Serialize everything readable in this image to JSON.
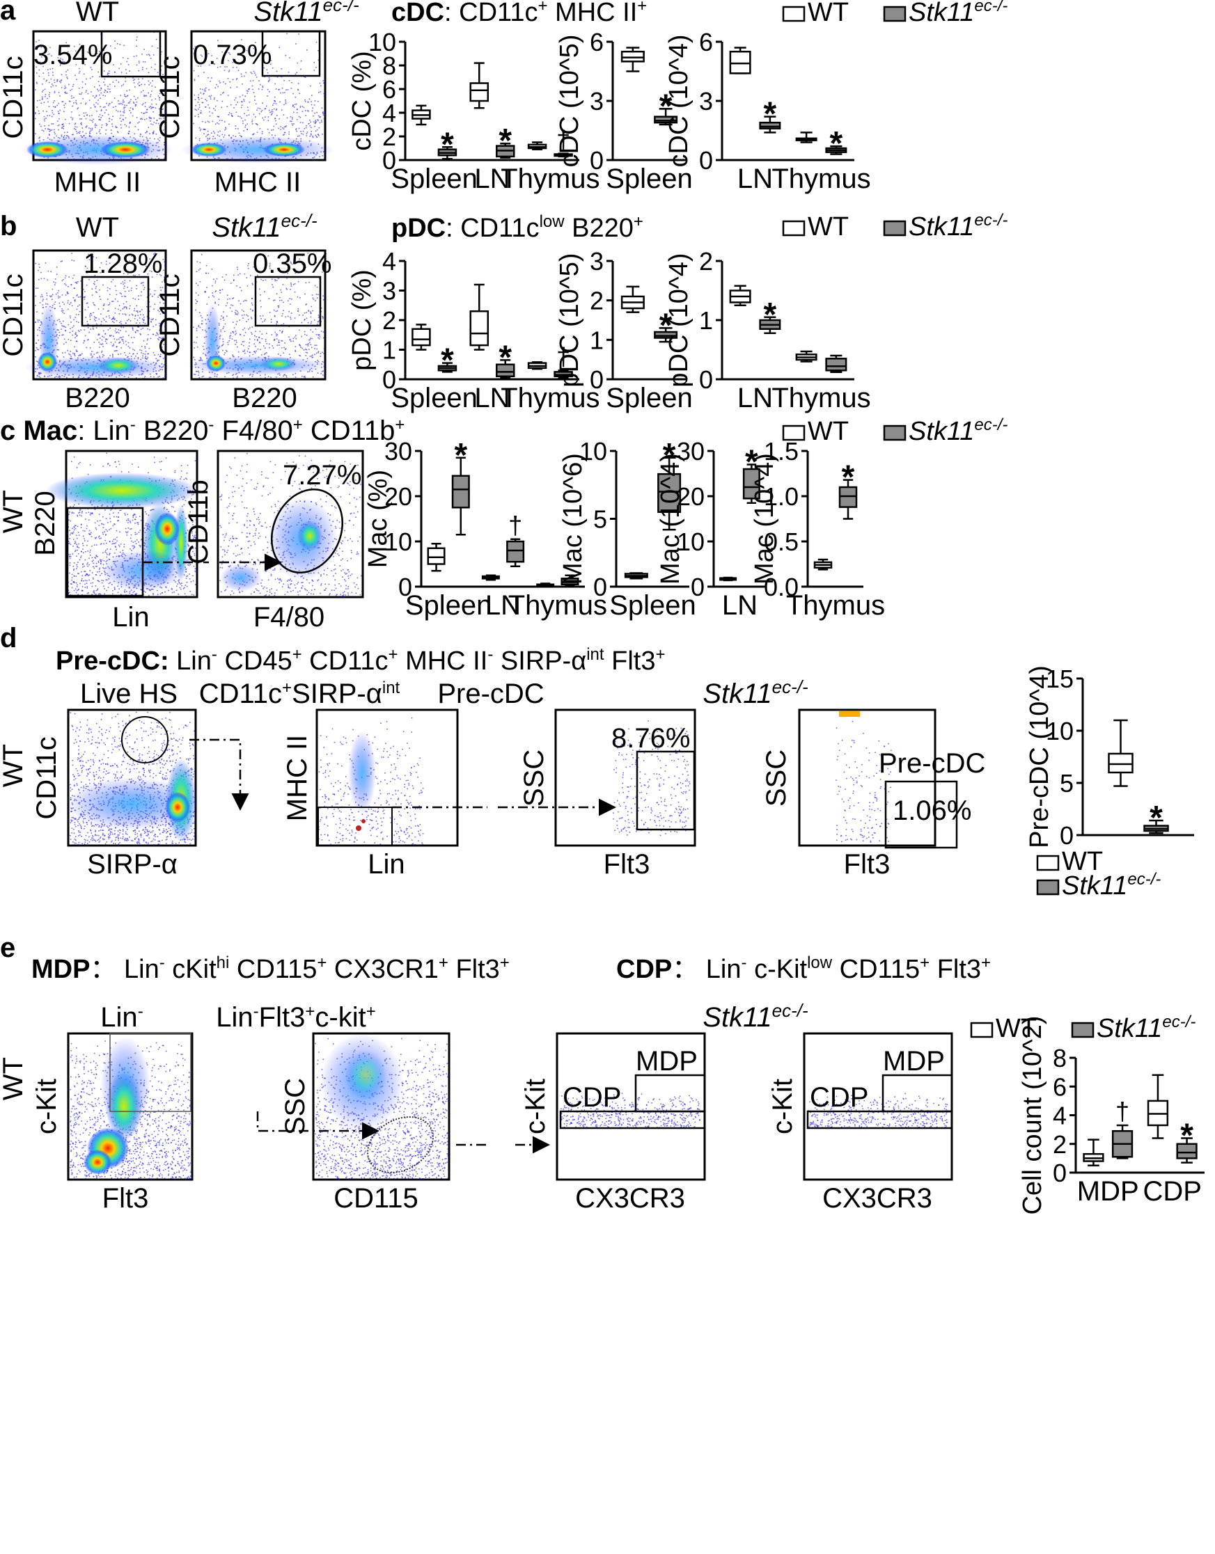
{
  "colors": {
    "wt_fill": "#ffffff",
    "ko_fill": "#8c8c8c",
    "flow_low": "#1a1aff",
    "flow_mid": "#2bd9c8",
    "flow_high": "#ff2a00"
  },
  "legend": {
    "wt": "WT",
    "ko_base": "Stk11",
    "ko_sup": "ec-/-"
  },
  "a": {
    "letter": "a",
    "title_bold": "cDC",
    "title_rest": ": CD11c",
    "title_sup1": "+",
    "title_mid": " MHC II",
    "title_sup2": "+",
    "flow_wt_title": "WT",
    "ko_base": "Stk11",
    "ko_sup": "ec-/-",
    "flow_ylabel": "CD11c",
    "flow_xlabel": "MHC II",
    "pct_wt": "3.54%",
    "pct_ko": "0.73%"
  },
  "b": {
    "letter": "b",
    "title_bold": "pDC",
    "title_rest": ": CD11c",
    "title_sup1": "low",
    "title_mid": " B220",
    "title_sup2": "+",
    "flow_wt_title": "WT",
    "ko_base": "Stk11",
    "ko_sup": "ec-/-",
    "flow_ylabel": "CD11c",
    "flow_xlabel": "B220",
    "pct_wt": "1.28%",
    "pct_ko": "0.35%"
  },
  "c": {
    "letter": "c",
    "title_bold": "Mac",
    "t1": ": Lin",
    "s1": "-",
    "t2": " B220",
    "s2": "-",
    "t3": " F4/80",
    "s3": "+",
    "t4": " CD11b",
    "s4": "+",
    "row_label": "WT",
    "flow1_ylabel": "B220",
    "flow1_xlabel": "Lin",
    "flow2_ylabel": "CD11b",
    "flow2_xlabel": "F4/80",
    "pct": "7.27%"
  },
  "d": {
    "letter": "d",
    "title_bold": "Pre-cDC:",
    "t1": "  Lin",
    "s1": "-",
    "t2": " CD45",
    "s2": "+",
    "t3": " CD11c",
    "s3": "+",
    "t4": " MHC II",
    "s4": "-",
    "t5": " SIRP-α",
    "s5": "int",
    "t6": " Flt3",
    "s6": "+",
    "row_label": "WT",
    "p1_title": "Live HS",
    "p1_ylabel": "CD11c",
    "p1_xlabel": "SIRP-α",
    "p2_title": "CD11c",
    "p2_sup1": "+",
    "p2_title2": "SIRP-α",
    "p2_sup2": "int",
    "p2_ylabel": "MHC II",
    "p2_xlabel": "Lin",
    "p3_title": "Pre-cDC",
    "p3_ylabel": "SSC",
    "p3_xlabel": "Flt3",
    "p3_pct": "8.76%",
    "p4_title_base": "Stk11",
    "p4_title_sup": "ec-/-",
    "p4_ylabel": "SSC",
    "p4_xlabel": "Flt3",
    "p4_gate": "Pre-cDC",
    "p4_pct": "1.06%"
  },
  "e": {
    "letter": "e",
    "title1_bold": "MDP",
    "t1": "： Lin",
    "s1": "-",
    "t2": " cKit",
    "s2": "hi",
    "t3": " CD115",
    "s3": "+",
    "t4": " CX3CR1",
    "s4": "+",
    "t5": " Flt3",
    "s5": "+",
    "title2_bold": "CDP",
    "u1": "： Lin",
    "v1": "-",
    "u2": " c-Kit",
    "v2": "low",
    "u3": " CD115",
    "v3": "+",
    "u4": " Flt3",
    "v4": "+",
    "row_label": "WT",
    "p1_title": "Lin",
    "p1_sup": "-",
    "p1_ylabel": "c-Kit",
    "p1_xlabel": "Flt3",
    "p2_title": "Lin",
    "p2_s1": "-",
    "p2_t2": "Flt3",
    "p2_s2": "+",
    "p2_t3": "c-kit",
    "p2_s3": "+",
    "p2_ylabel": "SSC",
    "p2_xlabel": "CD115",
    "p3_ylabel": "c-Kit",
    "p3_xlabel": "CX3CR3",
    "p3_mdp": "MDP",
    "p3_cdp": "CDP",
    "p4_title_base": "Stk11",
    "p4_title_sup": "ec-/-",
    "p4_ylabel": "c-Kit",
    "p4_xlabel": "CX3CR3",
    "p4_mdp": "MDP",
    "p4_cdp": "CDP"
  },
  "chart_data": [
    {
      "id": "a1",
      "type": "box",
      "ylabel": "cDC (%)",
      "ylim": [
        0,
        10
      ],
      "yticks": [
        0,
        2,
        4,
        6,
        8,
        10
      ],
      "categories": [
        "Spleen",
        "LN",
        "Thymus"
      ],
      "boxes": [
        {
          "category": "Spleen",
          "group": "WT",
          "min": 3.0,
          "q1": 3.5,
          "median": 3.8,
          "q3": 4.2,
          "max": 4.6,
          "mark": ""
        },
        {
          "category": "Spleen",
          "group": "Stk11ec-/-",
          "min": 0.1,
          "q1": 0.4,
          "median": 0.6,
          "q3": 0.9,
          "max": 1.1,
          "mark": "*"
        },
        {
          "category": "LN",
          "group": "WT",
          "min": 4.4,
          "q1": 5.0,
          "median": 5.9,
          "q3": 6.5,
          "max": 8.2,
          "mark": ""
        },
        {
          "category": "LN",
          "group": "Stk11ec-/-",
          "min": 0.2,
          "q1": 0.3,
          "median": 0.8,
          "q3": 1.2,
          "max": 1.4,
          "mark": "*"
        },
        {
          "category": "Thymus",
          "group": "WT",
          "min": 0.9,
          "q1": 1.0,
          "median": 1.1,
          "q3": 1.3,
          "max": 1.5,
          "mark": ""
        },
        {
          "category": "Thymus",
          "group": "Stk11ec-/-",
          "min": 0.3,
          "q1": 0.35,
          "median": 0.4,
          "q3": 0.5,
          "max": 0.55,
          "mark": "†"
        }
      ]
    },
    {
      "id": "a2",
      "type": "box",
      "ylabel": "cDC (10^5)",
      "ylim": [
        0,
        6
      ],
      "yticks": [
        0,
        3,
        6
      ],
      "categories": [
        "Spleen"
      ],
      "boxes": [
        {
          "category": "Spleen",
          "group": "WT",
          "min": 4.5,
          "q1": 5.0,
          "median": 5.2,
          "q3": 5.5,
          "max": 5.7,
          "mark": ""
        },
        {
          "category": "Spleen",
          "group": "Stk11ec-/-",
          "min": 1.8,
          "q1": 1.9,
          "median": 2.0,
          "q3": 2.2,
          "max": 2.6,
          "mark": "*"
        }
      ]
    },
    {
      "id": "a3",
      "type": "box",
      "ylabel": "cDC (10^4)",
      "ylim": [
        0,
        6
      ],
      "yticks": [
        0,
        3,
        6
      ],
      "categories": [
        "LN",
        "Thymus"
      ],
      "boxes": [
        {
          "category": "LN",
          "group": "WT",
          "min": 4.4,
          "q1": 4.4,
          "median": 4.9,
          "q3": 5.5,
          "max": 5.7,
          "mark": ""
        },
        {
          "category": "LN",
          "group": "Stk11ec-/-",
          "min": 1.4,
          "q1": 1.6,
          "median": 1.7,
          "q3": 1.9,
          "max": 2.2,
          "mark": "*"
        },
        {
          "category": "Thymus",
          "group": "WT",
          "min": 0.9,
          "q1": 1.0,
          "median": 1.05,
          "q3": 1.1,
          "max": 1.4,
          "mark": ""
        },
        {
          "category": "Thymus",
          "group": "Stk11ec-/-",
          "min": 0.3,
          "q1": 0.4,
          "median": 0.5,
          "q3": 0.6,
          "max": 0.7,
          "mark": "*"
        }
      ]
    },
    {
      "id": "b1",
      "type": "box",
      "ylabel": "pDC (%)",
      "ylim": [
        0,
        4
      ],
      "yticks": [
        0,
        1,
        2,
        3,
        4
      ],
      "categories": [
        "Spleen",
        "LN",
        "Thymus"
      ],
      "boxes": [
        {
          "category": "Spleen",
          "group": "WT",
          "min": 1.0,
          "q1": 1.15,
          "median": 1.35,
          "q3": 1.7,
          "max": 1.85,
          "mark": ""
        },
        {
          "category": "Spleen",
          "group": "Stk11ec-/-",
          "min": 0.25,
          "q1": 0.3,
          "median": 0.38,
          "q3": 0.45,
          "max": 0.55,
          "mark": "*"
        },
        {
          "category": "LN",
          "group": "WT",
          "min": 1.0,
          "q1": 1.15,
          "median": 1.55,
          "q3": 2.3,
          "max": 3.2,
          "mark": ""
        },
        {
          "category": "LN",
          "group": "Stk11ec-/-",
          "min": 0.05,
          "q1": 0.1,
          "median": 0.25,
          "q3": 0.5,
          "max": 0.65,
          "mark": "*"
        },
        {
          "category": "Thymus",
          "group": "WT",
          "min": 0.35,
          "q1": 0.38,
          "median": 0.45,
          "q3": 0.55,
          "max": 0.58,
          "mark": ""
        },
        {
          "category": "Thymus",
          "group": "Stk11ec-/-",
          "min": 0.05,
          "q1": 0.1,
          "median": 0.15,
          "q3": 0.25,
          "max": 0.3,
          "mark": "†"
        }
      ]
    },
    {
      "id": "b2",
      "type": "box",
      "ylabel": "pDC (10^5)",
      "ylim": [
        0,
        3
      ],
      "yticks": [
        0,
        1,
        2,
        3
      ],
      "categories": [
        "Spleen"
      ],
      "boxes": [
        {
          "category": "Spleen",
          "group": "WT",
          "min": 1.7,
          "q1": 1.8,
          "median": 1.95,
          "q3": 2.1,
          "max": 2.35,
          "mark": ""
        },
        {
          "category": "Spleen",
          "group": "Stk11ec-/-",
          "min": 0.95,
          "q1": 1.05,
          "median": 1.1,
          "q3": 1.2,
          "max": 1.3,
          "mark": "*"
        }
      ]
    },
    {
      "id": "b3",
      "type": "box",
      "ylabel": "pDC (10^4)",
      "ylim": [
        0,
        2
      ],
      "yticks": [
        0,
        1,
        2
      ],
      "categories": [
        "LN",
        "Thymus"
      ],
      "boxes": [
        {
          "category": "LN",
          "group": "WT",
          "min": 1.25,
          "q1": 1.3,
          "median": 1.4,
          "q3": 1.5,
          "max": 1.58,
          "mark": ""
        },
        {
          "category": "LN",
          "group": "Stk11ec-/-",
          "min": 0.78,
          "q1": 0.85,
          "median": 0.92,
          "q3": 1.0,
          "max": 1.05,
          "mark": "*"
        },
        {
          "category": "Thymus",
          "group": "WT",
          "min": 0.3,
          "q1": 0.33,
          "median": 0.37,
          "q3": 0.42,
          "max": 0.47,
          "mark": ""
        },
        {
          "category": "Thymus",
          "group": "Stk11ec-/-",
          "min": 0.12,
          "q1": 0.15,
          "median": 0.22,
          "q3": 0.35,
          "max": 0.4,
          "mark": ""
        }
      ]
    },
    {
      "id": "c1",
      "type": "box",
      "ylabel": "Mac (%)",
      "ylim": [
        0,
        30
      ],
      "yticks": [
        0,
        10,
        20,
        30
      ],
      "categories": [
        "Spleen",
        "LN",
        "Thymus"
      ],
      "boxes": [
        {
          "category": "Spleen",
          "group": "WT",
          "min": 3.5,
          "q1": 5.0,
          "median": 6.5,
          "q3": 8.5,
          "max": 9.5,
          "mark": ""
        },
        {
          "category": "Spleen",
          "group": "Stk11ec-/-",
          "min": 11.5,
          "q1": 17.5,
          "median": 21.5,
          "q3": 24.5,
          "max": 28.5,
          "mark": "*"
        },
        {
          "category": "LN",
          "group": "WT",
          "min": 1.5,
          "q1": 1.8,
          "median": 2.0,
          "q3": 2.3,
          "max": 2.5,
          "mark": ""
        },
        {
          "category": "LN",
          "group": "Stk11ec-/-",
          "min": 4.5,
          "q1": 5.5,
          "median": 8.0,
          "q3": 10.0,
          "max": 10.5,
          "mark": "†"
        },
        {
          "category": "Thymus",
          "group": "WT",
          "min": 0.1,
          "q1": 0.2,
          "median": 0.3,
          "q3": 0.5,
          "max": 0.7,
          "mark": ""
        },
        {
          "category": "Thymus",
          "group": "Stk11ec-/-",
          "min": 0.2,
          "q1": 0.5,
          "median": 1.0,
          "q3": 1.8,
          "max": 2.5,
          "mark": ""
        }
      ]
    },
    {
      "id": "c2",
      "type": "box",
      "ylabel": "Mac (10^6)",
      "ylim": [
        0,
        10
      ],
      "yticks": [
        0,
        5,
        10
      ],
      "categories": [
        "Spleen"
      ],
      "boxes": [
        {
          "category": "Spleen",
          "group": "WT",
          "min": 0.6,
          "q1": 0.7,
          "median": 0.8,
          "q3": 0.95,
          "max": 1.0,
          "mark": ""
        },
        {
          "category": "Spleen",
          "group": "Stk11ec-/-",
          "min": 4.2,
          "q1": 5.5,
          "median": 7.0,
          "q3": 8.3,
          "max": 9.5,
          "mark": "*"
        }
      ]
    },
    {
      "id": "c3",
      "type": "box",
      "ylabel": "Mac (10^4)",
      "ylim": [
        0,
        30
      ],
      "yticks": [
        0,
        10,
        20,
        30
      ],
      "categories": [
        "LN"
      ],
      "boxes": [
        {
          "category": "LN",
          "group": "WT",
          "min": 1.4,
          "q1": 1.5,
          "median": 1.7,
          "q3": 1.9,
          "max": 2.0,
          "mark": ""
        },
        {
          "category": "LN",
          "group": "Stk11ec-/-",
          "min": 18.5,
          "q1": 19.5,
          "median": 22.0,
          "q3": 26.0,
          "max": 27.0,
          "mark": "*"
        }
      ]
    },
    {
      "id": "c4",
      "type": "box",
      "ylabel": "Mac (10^4)",
      "ylim": [
        0,
        1.5
      ],
      "yticks": [
        0.0,
        0.5,
        1.0,
        1.5
      ],
      "tickFormat": "1",
      "categories": [
        "Thymus"
      ],
      "boxes": [
        {
          "category": "Thymus",
          "group": "WT",
          "min": 0.19,
          "q1": 0.21,
          "median": 0.24,
          "q3": 0.27,
          "max": 0.3,
          "mark": ""
        },
        {
          "category": "Thymus",
          "group": "Stk11ec-/-",
          "min": 0.75,
          "q1": 0.88,
          "median": 1.0,
          "q3": 1.1,
          "max": 1.18,
          "mark": "*"
        }
      ]
    },
    {
      "id": "d1",
      "type": "box",
      "ylabel": "Pre-cDC (10^4)",
      "ylim": [
        0,
        15
      ],
      "yticks": [
        0,
        5,
        10,
        15
      ],
      "categories": [],
      "boxes": [
        {
          "category": "",
          "group": "WT",
          "min": 4.7,
          "q1": 6.0,
          "median": 6.8,
          "q3": 7.8,
          "max": 11.0,
          "mark": ""
        },
        {
          "category": "",
          "group": "Stk11ec-/-",
          "min": 0.2,
          "q1": 0.4,
          "median": 0.6,
          "q3": 0.9,
          "max": 1.4,
          "mark": "*"
        }
      ]
    },
    {
      "id": "e1",
      "type": "box",
      "ylabel": "Cell count (10^2)",
      "ylim": [
        0,
        8
      ],
      "yticks": [
        0,
        2,
        4,
        6,
        8
      ],
      "categories": [
        "MDP",
        "CDP"
      ],
      "boxes": [
        {
          "category": "MDP",
          "group": "WT",
          "min": 0.5,
          "q1": 0.8,
          "median": 1.0,
          "q3": 1.3,
          "max": 2.3,
          "mark": ""
        },
        {
          "category": "MDP",
          "group": "Stk11ec-/-",
          "min": 1.0,
          "q1": 1.1,
          "median": 2.0,
          "q3": 2.9,
          "max": 3.3,
          "mark": "†"
        },
        {
          "category": "CDP",
          "group": "WT",
          "min": 2.4,
          "q1": 3.3,
          "median": 4.1,
          "q3": 5.0,
          "max": 6.8,
          "mark": ""
        },
        {
          "category": "CDP",
          "group": "Stk11ec-/-",
          "min": 0.7,
          "q1": 1.0,
          "median": 1.4,
          "q3": 2.0,
          "max": 2.4,
          "mark": "*"
        }
      ]
    }
  ]
}
